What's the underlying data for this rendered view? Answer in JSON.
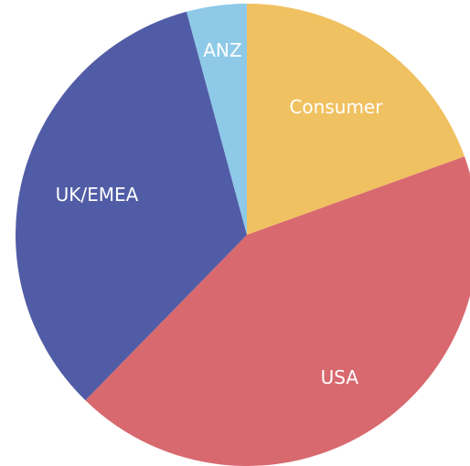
{
  "chart_data": {
    "type": "pie",
    "categories": [
      "Consumer",
      "USA",
      "UK/EMEA",
      "ANZ"
    ],
    "values": [
      19.5,
      42.8,
      33.5,
      4.2
    ],
    "colors": [
      "#f0c161",
      "#d8696f",
      "#515ca6",
      "#8ec9e8"
    ]
  }
}
